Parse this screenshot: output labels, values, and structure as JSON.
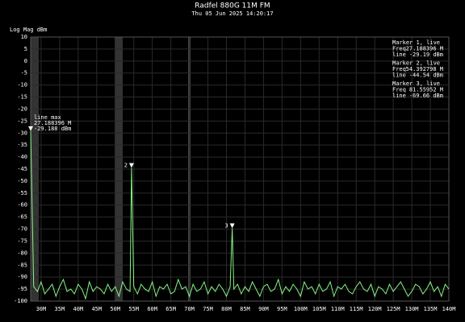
{
  "chart_data": {
    "type": "line",
    "title": "Radfel 880G 11M FM",
    "subtitle": "Thu 05 Jun 2025 14:20:17",
    "y_label": "Log Mag dBm",
    "xlim": [
      27.188,
      140
    ],
    "ylim": [
      -100,
      10
    ],
    "xticks": [
      {
        "value": 30,
        "label": "30M"
      },
      {
        "value": 35,
        "label": "35M"
      },
      {
        "value": 40,
        "label": "40M"
      },
      {
        "value": 45,
        "label": "45M"
      },
      {
        "value": 50,
        "label": "50M"
      },
      {
        "value": 55,
        "label": "55M"
      },
      {
        "value": 60,
        "label": "60M"
      },
      {
        "value": 65,
        "label": "65M"
      },
      {
        "value": 70,
        "label": "70M"
      },
      {
        "value": 75,
        "label": "75M"
      },
      {
        "value": 80,
        "label": "80M"
      },
      {
        "value": 85,
        "label": "85M"
      },
      {
        "value": 90,
        "label": "90M"
      },
      {
        "value": 95,
        "label": "95M"
      },
      {
        "value": 100,
        "label": "100M"
      },
      {
        "value": 105,
        "label": "105M"
      },
      {
        "value": 110,
        "label": "110M"
      },
      {
        "value": 115,
        "label": "115M"
      },
      {
        "value": 120,
        "label": "120M"
      },
      {
        "value": 125,
        "label": "125M"
      },
      {
        "value": 130,
        "label": "130M"
      },
      {
        "value": 135,
        "label": "135M"
      },
      {
        "value": 140,
        "label": "140M"
      }
    ],
    "yticks": [
      10,
      5,
      0,
      -5,
      -10,
      -15,
      -20,
      -25,
      -30,
      -35,
      -40,
      -45,
      -50,
      -55,
      -60,
      -65,
      -70,
      -75,
      -80,
      -85,
      -90,
      -95,
      -100
    ],
    "grid": true,
    "series": [
      {
        "name": "line",
        "color": "#86f586",
        "x": [
          27.188,
          28,
          29,
          30,
          31,
          32,
          33,
          34,
          35,
          36,
          37,
          38,
          39,
          40,
          41,
          42,
          43,
          44,
          45,
          46,
          47,
          48,
          49,
          50,
          51,
          52,
          53,
          54,
          54.393,
          55,
          56,
          57,
          58,
          59,
          60,
          61,
          62,
          63,
          64,
          65,
          66,
          67,
          68,
          69,
          70,
          71,
          72,
          73,
          74,
          75,
          76,
          77,
          78,
          79,
          80,
          81,
          81.56,
          82,
          83,
          84,
          85,
          86,
          87,
          88,
          89,
          90,
          91,
          92,
          93,
          94,
          95,
          96,
          97,
          98,
          99,
          100,
          101,
          102,
          103,
          104,
          105,
          106,
          107,
          108,
          109,
          110,
          111,
          112,
          113,
          114,
          115,
          116,
          117,
          118,
          119,
          120,
          121,
          122,
          123,
          124,
          125,
          126,
          127,
          128,
          129,
          130,
          131,
          132,
          133,
          134,
          135,
          136,
          137,
          138,
          139,
          140
        ],
        "values": [
          -29.19,
          -94,
          -96,
          -92,
          -97,
          -95,
          -93,
          -98,
          -94,
          -91,
          -96,
          -95,
          -97,
          -93,
          -95,
          -99,
          -92,
          -96,
          -94,
          -95,
          -97,
          -93,
          -96,
          -94,
          -98,
          -92,
          -95,
          -96,
          -44.54,
          -94,
          -97,
          -93,
          -95,
          -96,
          -92,
          -98,
          -94,
          -95,
          -93,
          -97,
          -96,
          -91,
          -95,
          -94,
          -98,
          -93,
          -96,
          -95,
          -92,
          -97,
          -94,
          -96,
          -93,
          -95,
          -98,
          -94,
          -69.66,
          -95,
          -93,
          -97,
          -94,
          -96,
          -92,
          -95,
          -98,
          -94,
          -93,
          -96,
          -95,
          -91,
          -97,
          -94,
          -96,
          -93,
          -95,
          -98,
          -92,
          -95,
          -94,
          -97,
          -93,
          -96,
          -95,
          -92,
          -98,
          -94,
          -95,
          -93,
          -96,
          -97,
          -94,
          -92,
          -95,
          -96,
          -93,
          -98,
          -94,
          -95,
          -97,
          -93,
          -96,
          -94,
          -92,
          -95,
          -98,
          -96,
          -93,
          -94,
          -97,
          -95,
          -92,
          -96,
          -94,
          -98,
          -93,
          -95
        ]
      }
    ],
    "peak_annotation": [
      "line max",
      "27.188396 M",
      "-29.188 dBm"
    ],
    "marker_points": [
      0,
      28,
      56
    ],
    "marker_tags": [
      "2",
      "3"
    ],
    "markers": [
      {
        "title": "Marker 1, live",
        "freq_label": "Freq",
        "freq": "27.188396 M",
        "level_label": "line",
        "level": "-29.19 dBm"
      },
      {
        "title": "Marker 2, live",
        "freq_label": "Freq",
        "freq": "54.392798 M",
        "level_label": "line",
        "level": "-44.54 dBm"
      },
      {
        "title": "Marker 3, live",
        "freq_label": "Freq",
        "freq": "81.55952 M",
        "level_label": "line",
        "level": "-69.66 dBm"
      }
    ]
  }
}
